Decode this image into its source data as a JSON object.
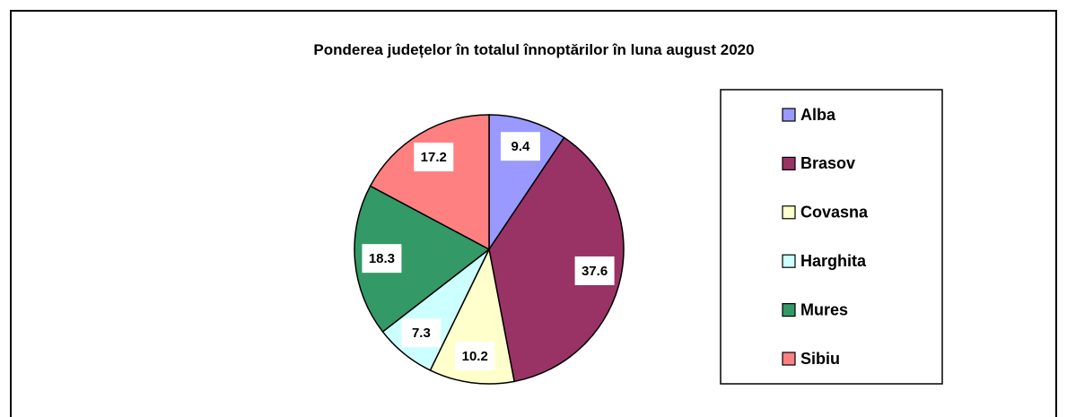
{
  "chart_data": {
    "type": "pie",
    "title": "Ponderea județelor în totalul înnoptărilor în luna august 2020",
    "categories": [
      "Alba",
      "Brasov",
      "Covasna",
      "Harghita",
      "Mures",
      "Sibiu"
    ],
    "values": [
      9.4,
      37.6,
      10.2,
      7.3,
      18.3,
      17.2
    ],
    "colors": [
      "#9999ff",
      "#993366",
      "#ffffcc",
      "#ccffff",
      "#339966",
      "#ff8080"
    ],
    "legend": "right"
  }
}
